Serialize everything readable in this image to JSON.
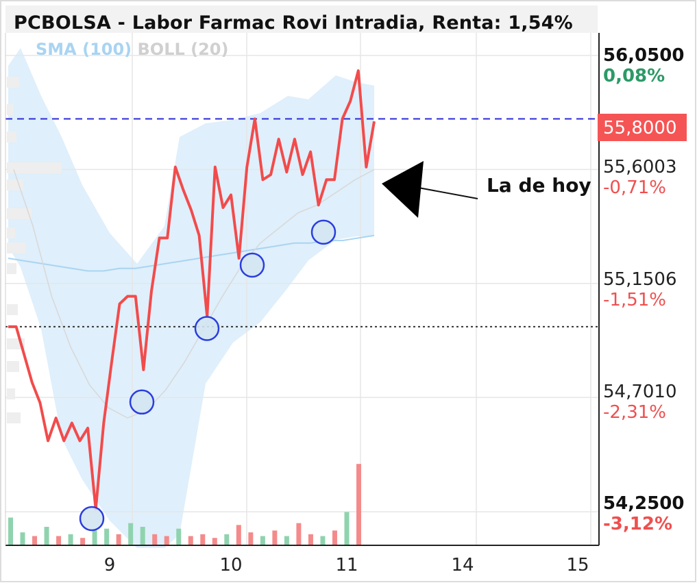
{
  "title": "PCBOLSA - Labor Farmac Rovi Intradia, Renta: 1,54%",
  "legend": {
    "sma": "SMA (100)",
    "boll": "BOLL (20)"
  },
  "y_labels": {
    "top_value": "56,0500",
    "top_pct": "0,08%",
    "current": "55,8000",
    "l1_value": "55,6003",
    "l1_pct": "-0,71%",
    "l2_value": "55,1506",
    "l2_pct": "-1,51%",
    "l3_value": "54,7010",
    "l3_pct": "-2,31%",
    "bottom_value": "54,2500",
    "bottom_pct": "-3,12%"
  },
  "x_labels": [
    "9",
    "10",
    "11",
    "14",
    "15"
  ],
  "annotation": "La de hoy",
  "colors": {
    "price": "#f24b4b",
    "sma": "#a9d4f2",
    "band": "#d9ecfa",
    "boll_mid": "#d8d8d8",
    "circle": "#2a3de0",
    "current_line": "#2a2ad9",
    "positive": "#2c9a66",
    "negative": "#ef4f4f"
  },
  "chart_data": {
    "type": "line",
    "title": "PCBOLSA - Labor Farmac Rovi Intradia, Renta: 1,54%",
    "ylim": [
      54.2,
      56.16
    ],
    "y_ticks": [
      56.05,
      55.6003,
      55.1506,
      54.701,
      54.25
    ],
    "x_ticks": [
      "9",
      "10",
      "11",
      "14",
      "15"
    ],
    "current_price": 55.8,
    "reference_price": 54.98,
    "series": [
      {
        "name": "",
        "values": [
          54.98,
          54.98,
          54.87,
          54.76,
          54.68,
          54.53,
          54.62,
          54.53,
          54.6,
          54.53,
          54.58,
          54.26,
          54.6,
          54.84,
          55.07,
          55.1,
          55.1,
          54.81,
          55.12,
          55.33,
          55.33,
          55.61,
          55.52,
          55.44,
          55.34,
          55.02,
          55.61,
          55.45,
          55.5,
          55.25,
          55.61,
          55.8,
          55.56,
          55.58,
          55.72,
          55.59,
          55.72,
          55.58,
          55.67,
          55.46,
          55.56,
          55.56,
          55.8,
          55.87,
          55.99,
          55.61,
          55.79
        ]
      },
      {
        "name": "SMA (100)",
        "values": [
          55.25,
          55.24,
          55.23,
          55.22,
          55.21,
          55.2,
          55.2,
          55.21,
          55.21,
          55.22,
          55.23,
          55.24,
          55.25,
          55.26,
          55.27,
          55.28,
          55.29,
          55.3,
          55.31,
          55.31,
          55.32,
          55.32,
          55.33,
          55.34
        ]
      },
      {
        "name": "BOLL (20) mid",
        "values": [
          55.6,
          55.38,
          55.1,
          54.9,
          54.75,
          54.66,
          54.62,
          54.65,
          54.73,
          54.84,
          54.97,
          55.1,
          55.22,
          55.31,
          55.37,
          55.43,
          55.46,
          55.51,
          55.56,
          55.6
        ]
      }
    ],
    "minima_markers": [
      54.25,
      54.71,
      55.0,
      55.25,
      55.38
    ],
    "volume": [
      {
        "dir": "up",
        "v": 0.15
      },
      {
        "dir": "up",
        "v": 0.07
      },
      {
        "dir": "down",
        "v": 0.05
      },
      {
        "dir": "up",
        "v": 0.1
      },
      {
        "dir": "down",
        "v": 0.05
      },
      {
        "dir": "up",
        "v": 0.06
      },
      {
        "dir": "down",
        "v": 0.04
      },
      {
        "dir": "up",
        "v": 0.08
      },
      {
        "dir": "up",
        "v": 0.09
      },
      {
        "dir": "down",
        "v": 0.06
      },
      {
        "dir": "up",
        "v": 0.12
      },
      {
        "dir": "up",
        "v": 0.1
      },
      {
        "dir": "down",
        "v": 0.06
      },
      {
        "dir": "down",
        "v": 0.05
      },
      {
        "dir": "up",
        "v": 0.09
      },
      {
        "dir": "down",
        "v": 0.05
      },
      {
        "dir": "down",
        "v": 0.06
      },
      {
        "dir": "down",
        "v": 0.04
      },
      {
        "dir": "up",
        "v": 0.06
      },
      {
        "dir": "down",
        "v": 0.11
      },
      {
        "dir": "down",
        "v": 0.07
      },
      {
        "dir": "up",
        "v": 0.05
      },
      {
        "dir": "down",
        "v": 0.08
      },
      {
        "dir": "up",
        "v": 0.05
      },
      {
        "dir": "down",
        "v": 0.12
      },
      {
        "dir": "down",
        "v": 0.06
      },
      {
        "dir": "up",
        "v": 0.05
      },
      {
        "dir": "down",
        "v": 0.08
      },
      {
        "dir": "up",
        "v": 0.18
      },
      {
        "dir": "down",
        "v": 0.44
      }
    ]
  }
}
